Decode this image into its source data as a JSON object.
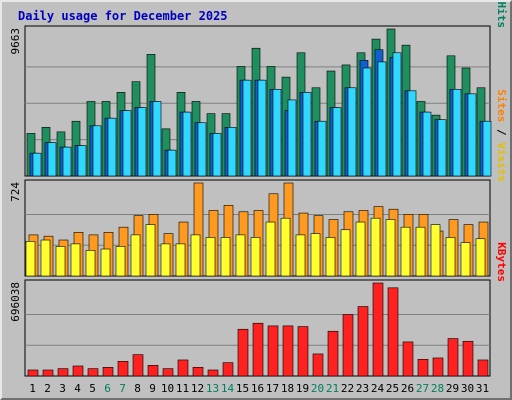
{
  "title": "Daily usage for December 2025",
  "colors": {
    "title": "#0000c0",
    "hits": "#006f4f",
    "hits_face": "#1f8f5f",
    "files": "#1060d0",
    "pages": "#00c8f0",
    "pages_face": "#30d8ff",
    "visits": "#ffd000",
    "visits_face": "#ffff30",
    "sites": "#ff8000",
    "sites_face": "#ff9a20",
    "kbytes": "#ff0000",
    "kbytes_face": "#ff2020",
    "weekend_day": "#008060",
    "weekday": "#000000"
  },
  "chart_data": [
    {
      "type": "bar",
      "panel": "hits-files-pages",
      "ymax_label": "9663",
      "ymax": 9663,
      "axis_legend": [
        {
          "text": "Pages",
          "color": "#00c0e0"
        },
        {
          "text": " / ",
          "color": "#000000"
        },
        {
          "text": "Files",
          "color": "#1060d0"
        },
        {
          "text": " / ",
          "color": "#000000"
        },
        {
          "text": "Hits",
          "color": "#008060"
        }
      ],
      "categories": [
        "1",
        "2",
        "3",
        "4",
        "5",
        "6",
        "7",
        "8",
        "9",
        "10",
        "11",
        "12",
        "13",
        "14",
        "15",
        "16",
        "17",
        "18",
        "19",
        "20",
        "21",
        "22",
        "23",
        "24",
        "25",
        "26",
        "27",
        "28",
        "29",
        "30",
        "31"
      ],
      "series": [
        {
          "name": "Hits",
          "values": [
            2800,
            3200,
            2900,
            3600,
            4900,
            4900,
            5500,
            6200,
            8000,
            3100,
            5500,
            4900,
            4100,
            4100,
            7200,
            8400,
            7200,
            6500,
            8100,
            5800,
            6900,
            7300,
            8100,
            9000,
            9663,
            8600,
            4900,
            4000,
            7900,
            7100,
            5800
          ]
        },
        {
          "name": "Files",
          "values": [
            1500,
            2200,
            1900,
            2000,
            3300,
            3800,
            4300,
            4500,
            4900,
            1700,
            4200,
            3500,
            2800,
            3200,
            6300,
            6300,
            5700,
            4300,
            5500,
            3600,
            4500,
            5800,
            7600,
            8300,
            7800,
            5600,
            4200,
            3700,
            5700,
            5400,
            3600
          ]
        },
        {
          "name": "Pages",
          "values": [
            1500,
            2200,
            1900,
            2000,
            3300,
            3800,
            4300,
            4500,
            4900,
            1700,
            4200,
            3500,
            2800,
            3200,
            6300,
            6300,
            5700,
            5000,
            5500,
            3600,
            4500,
            5800,
            7100,
            7500,
            8100,
            5600,
            4200,
            3700,
            5700,
            5400,
            3600
          ]
        }
      ]
    },
    {
      "type": "bar",
      "panel": "sites-visits",
      "ymax_label": "724",
      "ymax": 724,
      "axis_legend": [
        {
          "text": "Sites",
          "color": "#ff8000"
        },
        {
          "text": " / ",
          "color": "#000000"
        },
        {
          "text": "Visits",
          "color": "#e0c000"
        }
      ],
      "categories": [
        "1",
        "2",
        "3",
        "4",
        "5",
        "6",
        "7",
        "8",
        "9",
        "10",
        "11",
        "12",
        "13",
        "14",
        "15",
        "16",
        "17",
        "18",
        "19",
        "20",
        "21",
        "22",
        "23",
        "24",
        "25",
        "26",
        "27",
        "28",
        "29",
        "30",
        "31"
      ],
      "series": [
        {
          "name": "Sites",
          "values": [
            320,
            310,
            280,
            340,
            320,
            340,
            380,
            470,
            480,
            330,
            420,
            724,
            510,
            550,
            500,
            510,
            640,
            724,
            490,
            470,
            440,
            500,
            510,
            540,
            520,
            480,
            480,
            350,
            440,
            400,
            420
          ]
        },
        {
          "name": "Visits",
          "values": [
            270,
            280,
            230,
            250,
            200,
            210,
            230,
            320,
            400,
            250,
            250,
            320,
            300,
            300,
            320,
            300,
            420,
            450,
            320,
            330,
            300,
            360,
            420,
            450,
            440,
            380,
            380,
            400,
            300,
            260,
            290
          ]
        }
      ]
    },
    {
      "type": "bar",
      "panel": "kbytes",
      "ymax_label": "696038",
      "ymax": 696038,
      "axis_legend": [
        {
          "text": "KBytes",
          "color": "#ff0000"
        }
      ],
      "categories": [
        "1",
        "2",
        "3",
        "4",
        "5",
        "6",
        "7",
        "8",
        "9",
        "10",
        "11",
        "12",
        "13",
        "14",
        "15",
        "16",
        "17",
        "18",
        "19",
        "20",
        "21",
        "22",
        "23",
        "24",
        "25",
        "26",
        "27",
        "28",
        "29",
        "30",
        "31"
      ],
      "series": [
        {
          "name": "KBytes",
          "values": [
            45000,
            45000,
            55000,
            75000,
            55000,
            65000,
            110000,
            160000,
            80000,
            55000,
            120000,
            65000,
            45000,
            100000,
            350000,
            395000,
            375000,
            375000,
            370000,
            165000,
            335000,
            460000,
            520000,
            696038,
            660000,
            255000,
            125000,
            135000,
            280000,
            260000,
            120000
          ]
        }
      ]
    }
  ],
  "weekend_days": [
    6,
    7,
    13,
    14,
    20,
    21,
    27,
    28
  ]
}
